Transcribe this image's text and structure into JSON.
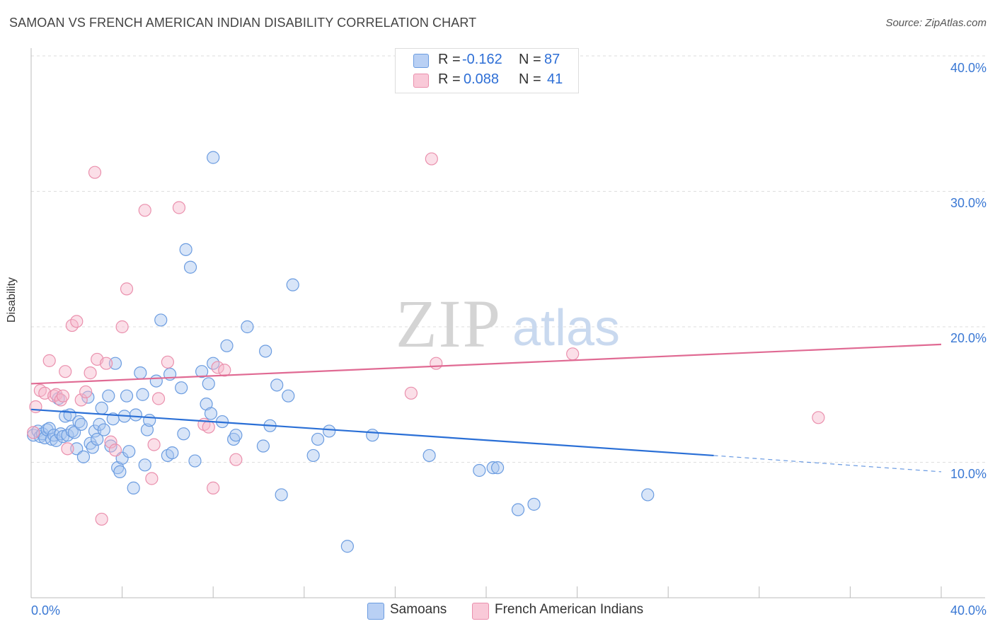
{
  "title": "SAMOAN VS FRENCH AMERICAN INDIAN DISABILITY CORRELATION CHART",
  "source": "Source: ZipAtlas.com",
  "colors": {
    "blue_fill": "#a9c6f0",
    "blue_stroke": "#6b9ce0",
    "blue_line": "#2a6fd6",
    "pink_fill": "#f6b9cc",
    "pink_stroke": "#ea90ad",
    "pink_line": "#e06a93",
    "tick_label": "#3a78d4"
  },
  "legend": {
    "samoans": {
      "r_label": "R =",
      "r_value": "-0.162",
      "n_label": "N =",
      "n_value": "87"
    },
    "french": {
      "r_label": "R =",
      "r_value": "0.088",
      "n_label": "N =",
      "n_value": "41"
    }
  },
  "bottom_legend": {
    "samoans": "Samoans",
    "french": "French American Indians"
  },
  "watermark": {
    "zip": "ZIP",
    "atlas": "atlas"
  },
  "chart_data": {
    "type": "scatter",
    "title": "SAMOAN VS FRENCH AMERICAN INDIAN DISABILITY CORRELATION CHART",
    "xlabel": "",
    "ylabel": "Disability",
    "xlim": [
      0,
      40
    ],
    "ylim": [
      0,
      40
    ],
    "x_tick_labels": [
      "0.0%",
      "40.0%"
    ],
    "y_tick_labels": [
      "10.0%",
      "20.0%",
      "30.0%",
      "40.0%"
    ],
    "y_ticks": [
      10,
      20,
      30,
      40
    ],
    "grid": true,
    "legend_position": "top-center",
    "series": [
      {
        "name": "Samoans",
        "R": -0.162,
        "N": 87,
        "trend": {
          "x": [
            0,
            30
          ],
          "y": [
            13.9,
            10.5
          ],
          "dashed_to_x": 40,
          "dashed_end_y": 9.3
        },
        "points": [
          [
            0.1,
            12.0
          ],
          [
            0.3,
            12.3
          ],
          [
            0.4,
            11.9
          ],
          [
            0.5,
            12.1
          ],
          [
            0.6,
            11.8
          ],
          [
            0.7,
            12.4
          ],
          [
            0.8,
            12.5
          ],
          [
            0.9,
            11.7
          ],
          [
            1.0,
            12.0
          ],
          [
            1.1,
            11.6
          ],
          [
            1.2,
            14.7
          ],
          [
            1.3,
            12.1
          ],
          [
            1.4,
            11.9
          ],
          [
            1.5,
            13.4
          ],
          [
            1.6,
            12.0
          ],
          [
            1.7,
            13.5
          ],
          [
            1.8,
            12.3
          ],
          [
            1.9,
            12.2
          ],
          [
            2.0,
            11.0
          ],
          [
            2.1,
            13.0
          ],
          [
            2.2,
            12.8
          ],
          [
            2.3,
            10.4
          ],
          [
            2.5,
            14.8
          ],
          [
            2.6,
            11.4
          ],
          [
            2.7,
            11.1
          ],
          [
            2.8,
            12.3
          ],
          [
            2.9,
            11.7
          ],
          [
            3.0,
            12.8
          ],
          [
            3.1,
            14.0
          ],
          [
            3.2,
            12.4
          ],
          [
            3.4,
            14.9
          ],
          [
            3.5,
            11.2
          ],
          [
            3.6,
            13.2
          ],
          [
            3.7,
            17.3
          ],
          [
            3.8,
            9.6
          ],
          [
            3.9,
            9.3
          ],
          [
            4.0,
            10.3
          ],
          [
            4.1,
            13.4
          ],
          [
            4.2,
            14.9
          ],
          [
            4.3,
            10.8
          ],
          [
            4.5,
            8.1
          ],
          [
            4.6,
            13.5
          ],
          [
            4.8,
            16.6
          ],
          [
            4.9,
            15.0
          ],
          [
            5.0,
            9.8
          ],
          [
            5.1,
            12.4
          ],
          [
            5.2,
            13.1
          ],
          [
            5.5,
            16.0
          ],
          [
            5.7,
            20.5
          ],
          [
            6.0,
            10.5
          ],
          [
            6.1,
            16.5
          ],
          [
            6.2,
            10.7
          ],
          [
            6.6,
            15.5
          ],
          [
            6.7,
            12.1
          ],
          [
            6.8,
            25.7
          ],
          [
            7.0,
            24.4
          ],
          [
            7.2,
            10.1
          ],
          [
            7.5,
            16.7
          ],
          [
            7.7,
            14.3
          ],
          [
            7.8,
            15.8
          ],
          [
            7.9,
            13.6
          ],
          [
            8.0,
            32.5
          ],
          [
            8.0,
            17.3
          ],
          [
            8.4,
            13.0
          ],
          [
            8.6,
            18.6
          ],
          [
            8.9,
            11.7
          ],
          [
            9.0,
            12.0
          ],
          [
            9.5,
            20.0
          ],
          [
            10.2,
            11.2
          ],
          [
            10.3,
            18.2
          ],
          [
            10.5,
            12.7
          ],
          [
            10.8,
            15.7
          ],
          [
            11.0,
            7.6
          ],
          [
            11.3,
            14.9
          ],
          [
            11.5,
            23.1
          ],
          [
            12.4,
            10.5
          ],
          [
            12.6,
            11.7
          ],
          [
            13.1,
            12.3
          ],
          [
            13.9,
            3.8
          ],
          [
            15.0,
            12.0
          ],
          [
            17.5,
            10.5
          ],
          [
            19.7,
            9.4
          ],
          [
            20.3,
            9.6
          ],
          [
            20.5,
            9.6
          ],
          [
            21.4,
            6.5
          ],
          [
            22.1,
            6.9
          ],
          [
            27.1,
            7.6
          ]
        ]
      },
      {
        "name": "French American Indians",
        "R": 0.088,
        "N": 41,
        "trend": {
          "x": [
            0,
            40
          ],
          "y": [
            15.8,
            18.7
          ]
        },
        "points": [
          [
            0.2,
            14.1
          ],
          [
            0.4,
            15.3
          ],
          [
            0.6,
            15.1
          ],
          [
            0.8,
            17.5
          ],
          [
            1.0,
            14.9
          ],
          [
            1.1,
            15.0
          ],
          [
            1.3,
            14.6
          ],
          [
            1.4,
            14.9
          ],
          [
            1.5,
            16.7
          ],
          [
            1.6,
            11.0
          ],
          [
            1.8,
            20.1
          ],
          [
            2.0,
            20.4
          ],
          [
            2.2,
            14.6
          ],
          [
            2.4,
            15.2
          ],
          [
            2.6,
            16.6
          ],
          [
            2.8,
            31.4
          ],
          [
            2.9,
            17.6
          ],
          [
            3.1,
            5.8
          ],
          [
            3.3,
            17.3
          ],
          [
            3.5,
            11.5
          ],
          [
            3.7,
            10.9
          ],
          [
            4.0,
            20.0
          ],
          [
            4.2,
            22.8
          ],
          [
            5.0,
            28.6
          ],
          [
            5.3,
            8.8
          ],
          [
            5.4,
            11.3
          ],
          [
            5.6,
            14.7
          ],
          [
            6.0,
            17.4
          ],
          [
            6.5,
            28.8
          ],
          [
            7.6,
            12.8
          ],
          [
            7.8,
            12.6
          ],
          [
            8.0,
            8.1
          ],
          [
            8.2,
            17.0
          ],
          [
            8.5,
            16.8
          ],
          [
            9.0,
            10.2
          ],
          [
            16.7,
            15.1
          ],
          [
            17.6,
            32.4
          ],
          [
            17.8,
            17.3
          ],
          [
            23.8,
            18.0
          ],
          [
            34.6,
            13.3
          ],
          [
            0.1,
            12.2
          ]
        ]
      }
    ]
  }
}
